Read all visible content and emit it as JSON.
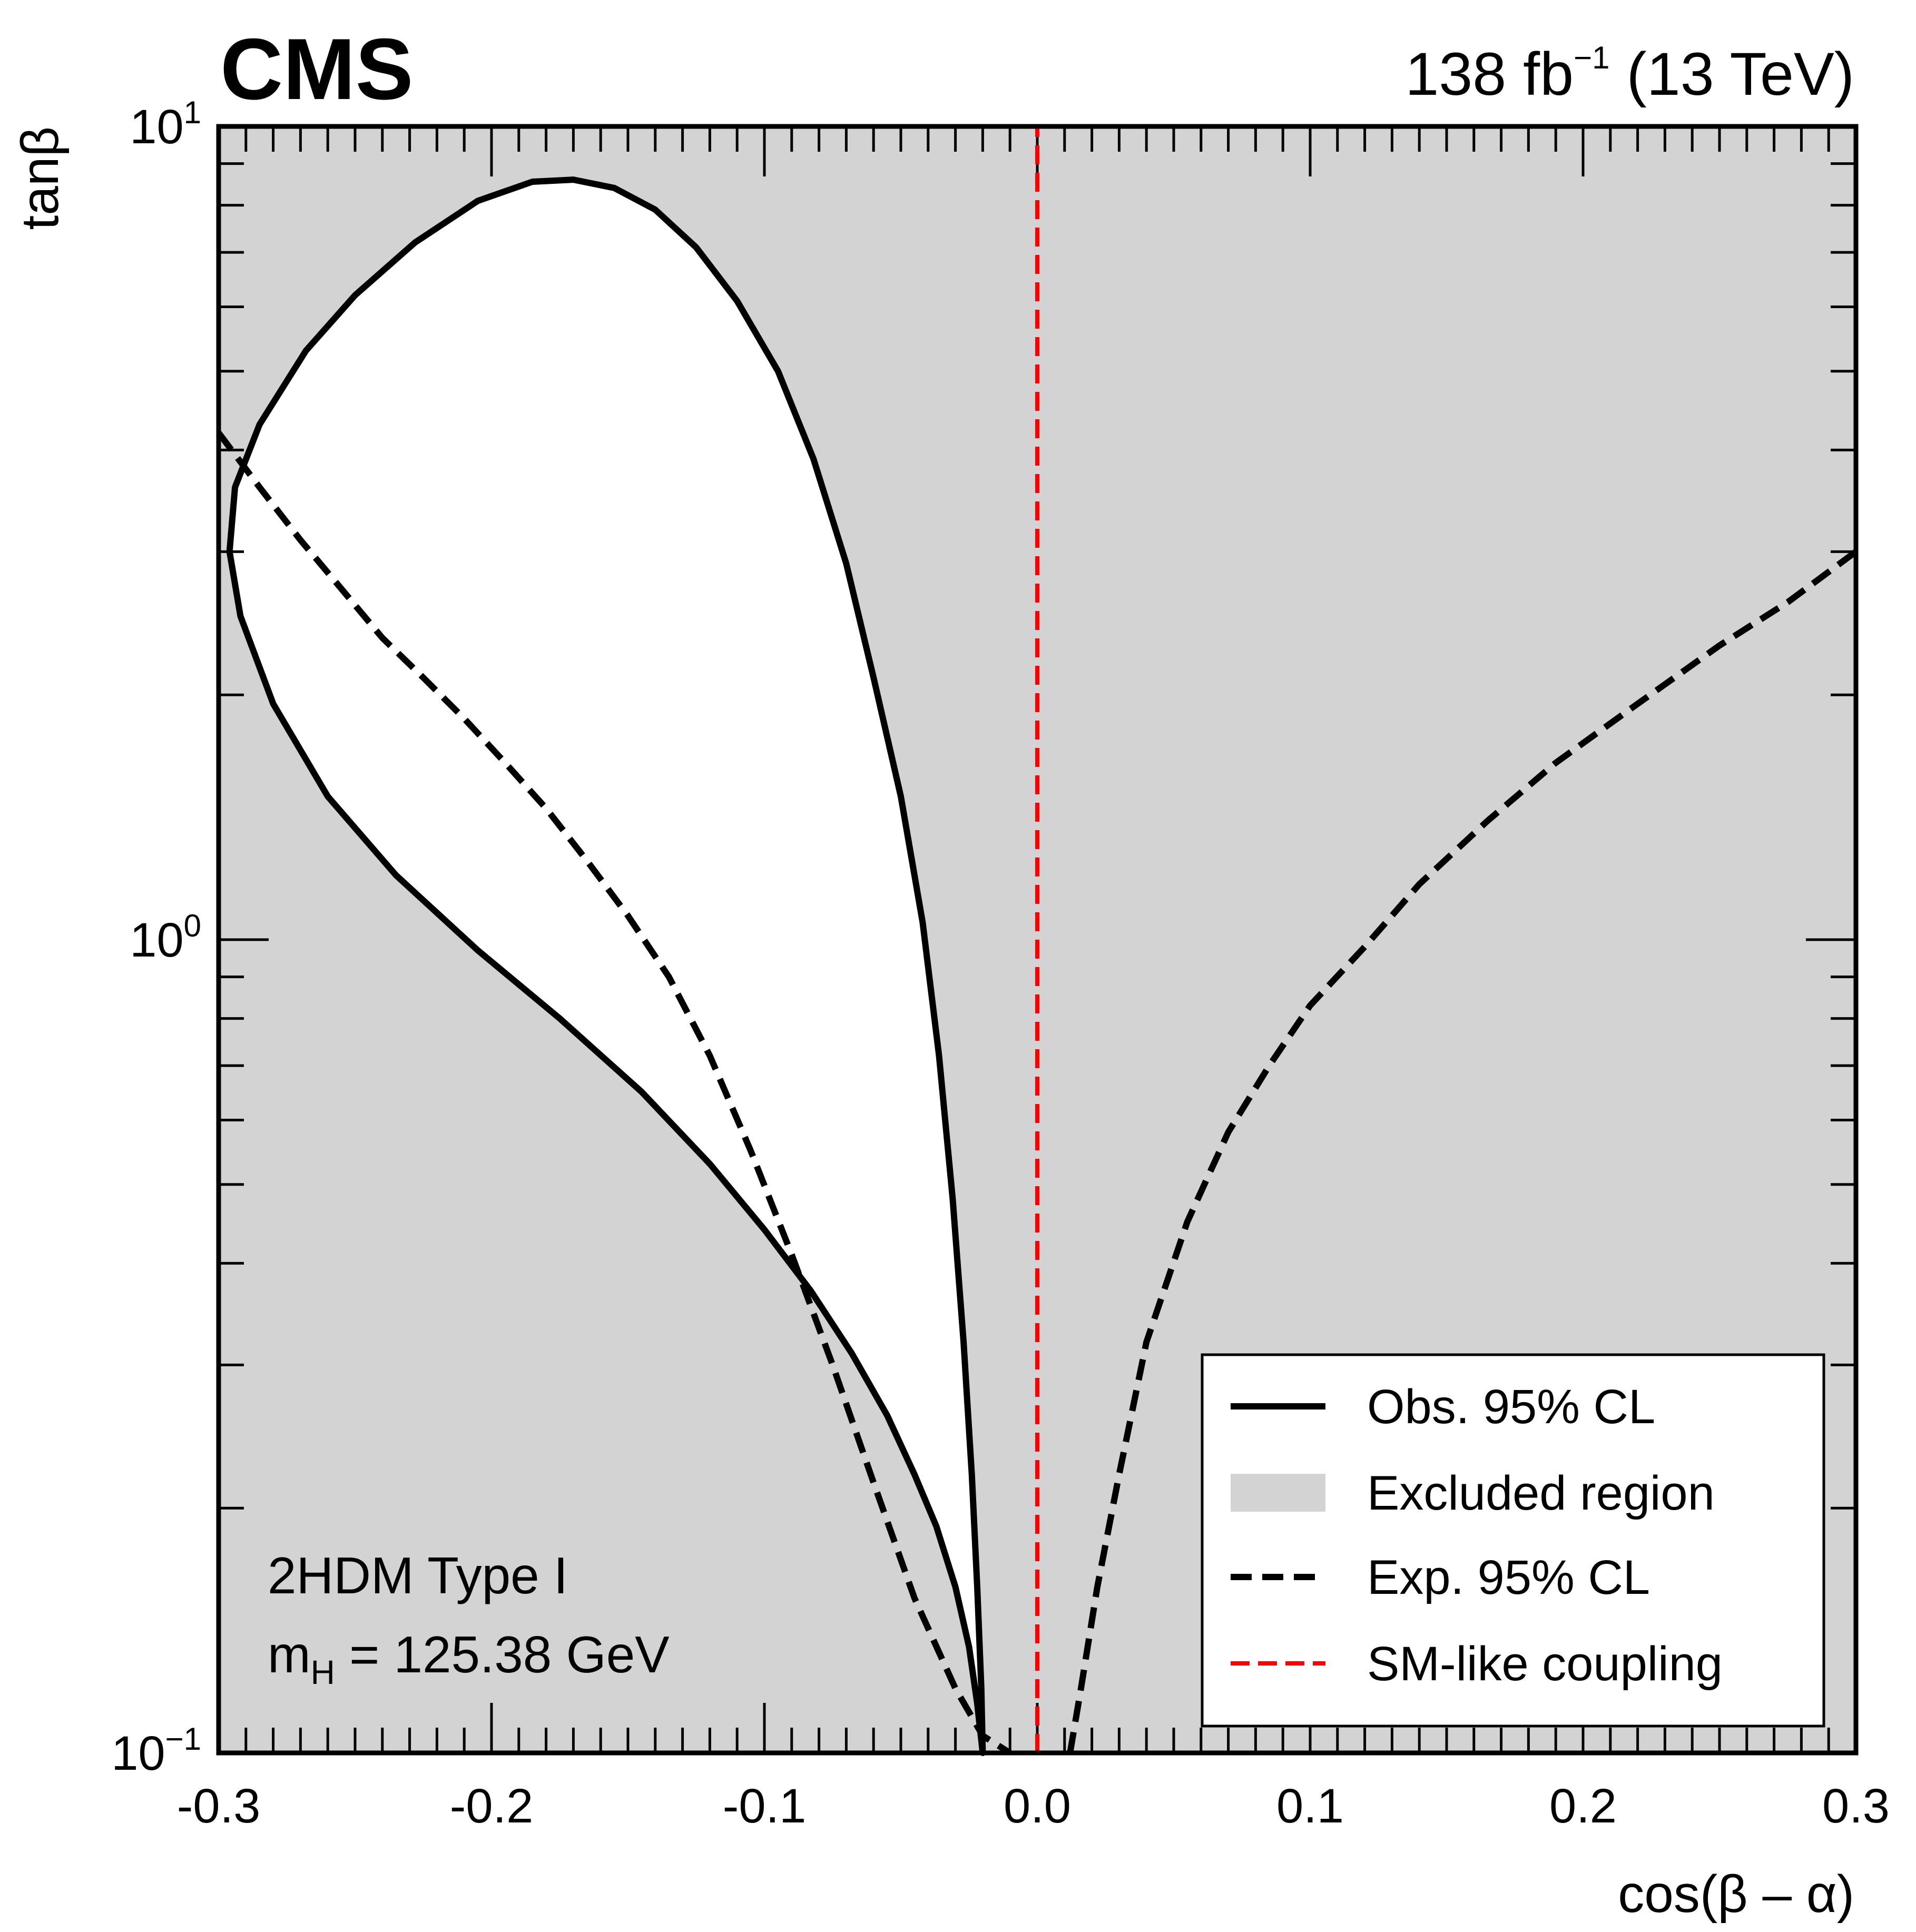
{
  "chart_data": {
    "type": "line",
    "experiment": "CMS",
    "luminosity": {
      "value": "138 fb",
      "exponent": "−1",
      "energy": "(13 TeV)"
    },
    "xlabel": "cos(β – α)",
    "ylabel": "tanβ",
    "xlim": [
      -0.3,
      0.3
    ],
    "ylim": [
      0.1,
      10
    ],
    "yscale": "log",
    "x_ticks": [
      {
        "value": -0.3,
        "label": "-0.3"
      },
      {
        "value": -0.2,
        "label": "-0.2"
      },
      {
        "value": -0.1,
        "label": "-0.1"
      },
      {
        "value": 0.0,
        "label": "0.0"
      },
      {
        "value": 0.1,
        "label": "0.1"
      },
      {
        "value": 0.2,
        "label": "0.2"
      },
      {
        "value": 0.3,
        "label": "0.3"
      }
    ],
    "y_ticks": [
      {
        "value": 10,
        "base": "10",
        "exp": "1"
      },
      {
        "value": 1,
        "base": "10",
        "exp": "0"
      },
      {
        "value": 0.1,
        "base": "10",
        "exp": "−1"
      }
    ],
    "annotations": {
      "model": "2HDM Type I",
      "mass_symbol": "m",
      "mass_subscript": "H",
      "mass_value": " = 125.38 GeV"
    },
    "colors": {
      "excluded": "#d3d3d3",
      "allowed": "#ffffff",
      "observed": "#000000",
      "expected": "#000000",
      "sm_like": "#ff0000"
    },
    "series": [
      {
        "name": "Obs. 95% CL",
        "style": "solid",
        "closed": true,
        "points": [
          [
            -0.02,
            0.1
          ],
          [
            -0.022,
            0.115
          ],
          [
            -0.025,
            0.135
          ],
          [
            -0.03,
            0.16
          ],
          [
            -0.037,
            0.19
          ],
          [
            -0.045,
            0.22
          ],
          [
            -0.055,
            0.26
          ],
          [
            -0.068,
            0.31
          ],
          [
            -0.083,
            0.37
          ],
          [
            -0.1,
            0.44
          ],
          [
            -0.12,
            0.53
          ],
          [
            -0.145,
            0.65
          ],
          [
            -0.175,
            0.8
          ],
          [
            -0.205,
            0.97
          ],
          [
            -0.235,
            1.2
          ],
          [
            -0.26,
            1.5
          ],
          [
            -0.28,
            1.95
          ],
          [
            -0.292,
            2.5
          ],
          [
            -0.296,
            3.0
          ],
          [
            -0.294,
            3.6
          ],
          [
            -0.285,
            4.3
          ],
          [
            -0.268,
            5.3
          ],
          [
            -0.25,
            6.2
          ],
          [
            -0.228,
            7.2
          ],
          [
            -0.205,
            8.1
          ],
          [
            -0.185,
            8.55
          ],
          [
            -0.17,
            8.6
          ],
          [
            -0.155,
            8.4
          ],
          [
            -0.14,
            7.9
          ],
          [
            -0.125,
            7.1
          ],
          [
            -0.11,
            6.1
          ],
          [
            -0.095,
            5.0
          ],
          [
            -0.082,
            3.9
          ],
          [
            -0.07,
            2.9
          ],
          [
            -0.06,
            2.1
          ],
          [
            -0.05,
            1.5
          ],
          [
            -0.042,
            1.05
          ],
          [
            -0.036,
            0.72
          ],
          [
            -0.031,
            0.48
          ],
          [
            -0.027,
            0.32
          ],
          [
            -0.024,
            0.22
          ],
          [
            -0.022,
            0.16
          ],
          [
            -0.0205,
            0.12
          ],
          [
            -0.02,
            0.1
          ]
        ]
      },
      {
        "name": "Exp. 95% CL",
        "style": "dashed",
        "segments": [
          [
            [
              -0.3,
              4.2
            ],
            [
              -0.285,
              3.6
            ],
            [
              -0.27,
              3.1
            ],
            [
              -0.255,
              2.7
            ],
            [
              -0.24,
              2.35
            ],
            [
              -0.225,
              2.1
            ],
            [
              -0.21,
              1.87
            ],
            [
              -0.195,
              1.65
            ],
            [
              -0.18,
              1.45
            ],
            [
              -0.165,
              1.25
            ],
            [
              -0.15,
              1.07
            ],
            [
              -0.135,
              0.9
            ],
            [
              -0.12,
              0.72
            ],
            [
              -0.105,
              0.55
            ],
            [
              -0.09,
              0.41
            ],
            [
              -0.075,
              0.3
            ],
            [
              -0.06,
              0.215
            ],
            [
              -0.045,
              0.155
            ],
            [
              -0.03,
              0.12
            ],
            [
              -0.02,
              0.105
            ],
            [
              -0.01,
              0.1
            ]
          ],
          [
            [
              0.012,
              0.1
            ],
            [
              0.016,
              0.12
            ],
            [
              0.022,
              0.16
            ],
            [
              0.03,
              0.22
            ],
            [
              0.04,
              0.32
            ],
            [
              0.055,
              0.45
            ],
            [
              0.07,
              0.58
            ],
            [
              0.085,
              0.7
            ],
            [
              0.1,
              0.83
            ],
            [
              0.12,
              0.98
            ],
            [
              0.14,
              1.17
            ],
            [
              0.165,
              1.4
            ],
            [
              0.19,
              1.65
            ],
            [
              0.22,
              1.95
            ],
            [
              0.25,
              2.3
            ],
            [
              0.275,
              2.6
            ],
            [
              0.3,
              3.0
            ]
          ]
        ]
      },
      {
        "name": "SM-like coupling",
        "style": "dashed",
        "color": "red",
        "points": [
          [
            0.0,
            0.1
          ],
          [
            0.0,
            10
          ]
        ]
      }
    ],
    "legend": {
      "position": "bottom-right",
      "entries": [
        {
          "label": "Obs. 95% CL",
          "style": "solid"
        },
        {
          "label": "Excluded region",
          "style": "fill"
        },
        {
          "label": "Exp. 95% CL",
          "style": "dashed"
        },
        {
          "label": "SM-like coupling",
          "style": "red-dashed"
        }
      ]
    }
  }
}
